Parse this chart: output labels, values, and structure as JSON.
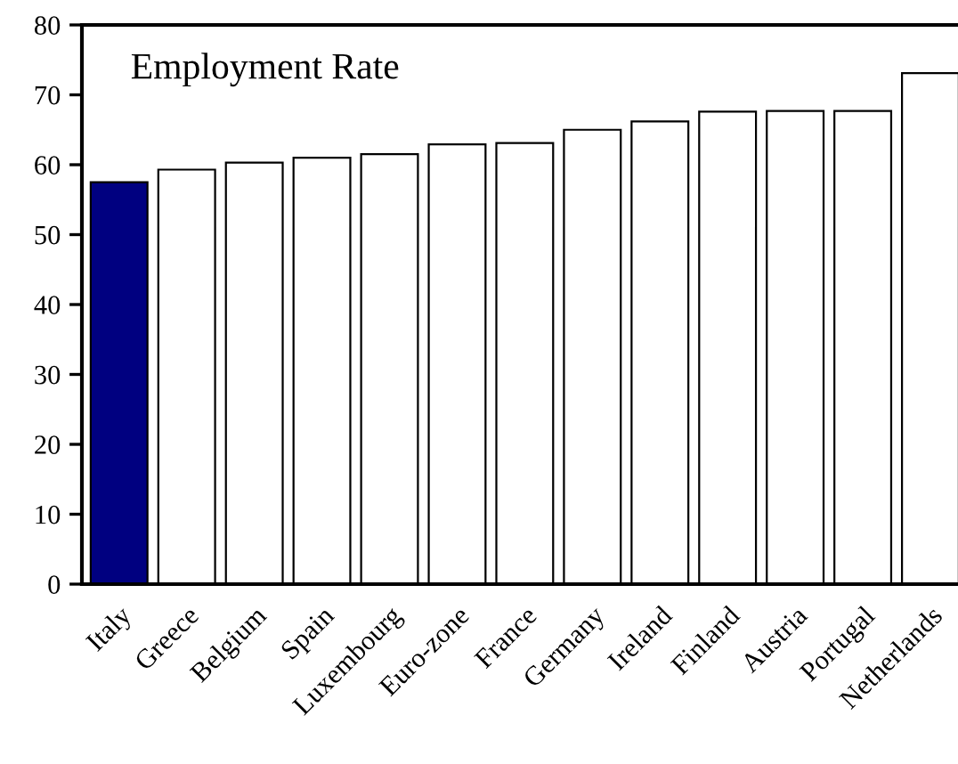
{
  "chart_data": {
    "type": "bar",
    "title": "Employment Rate",
    "categories": [
      "Italy",
      "Greece",
      "Belgium",
      "Spain",
      "Luxembourg",
      "Euro-zone",
      "France",
      "Germany",
      "Ireland",
      "Finland",
      "Austria",
      "Portugal",
      "Netherlands"
    ],
    "values": [
      57.5,
      59.3,
      60.3,
      61.0,
      61.5,
      62.9,
      63.1,
      65.0,
      66.2,
      67.6,
      67.7,
      67.7,
      73.1
    ],
    "colors": [
      "#000080",
      "#ffffff",
      "#ffffff",
      "#ffffff",
      "#ffffff",
      "#ffffff",
      "#ffffff",
      "#ffffff",
      "#ffffff",
      "#ffffff",
      "#ffffff",
      "#ffffff",
      "#ffffff"
    ],
    "ylim": [
      0,
      80
    ],
    "yticks": [
      0,
      10,
      20,
      30,
      40,
      50,
      60,
      70,
      80
    ],
    "grid": false,
    "legend": false
  }
}
